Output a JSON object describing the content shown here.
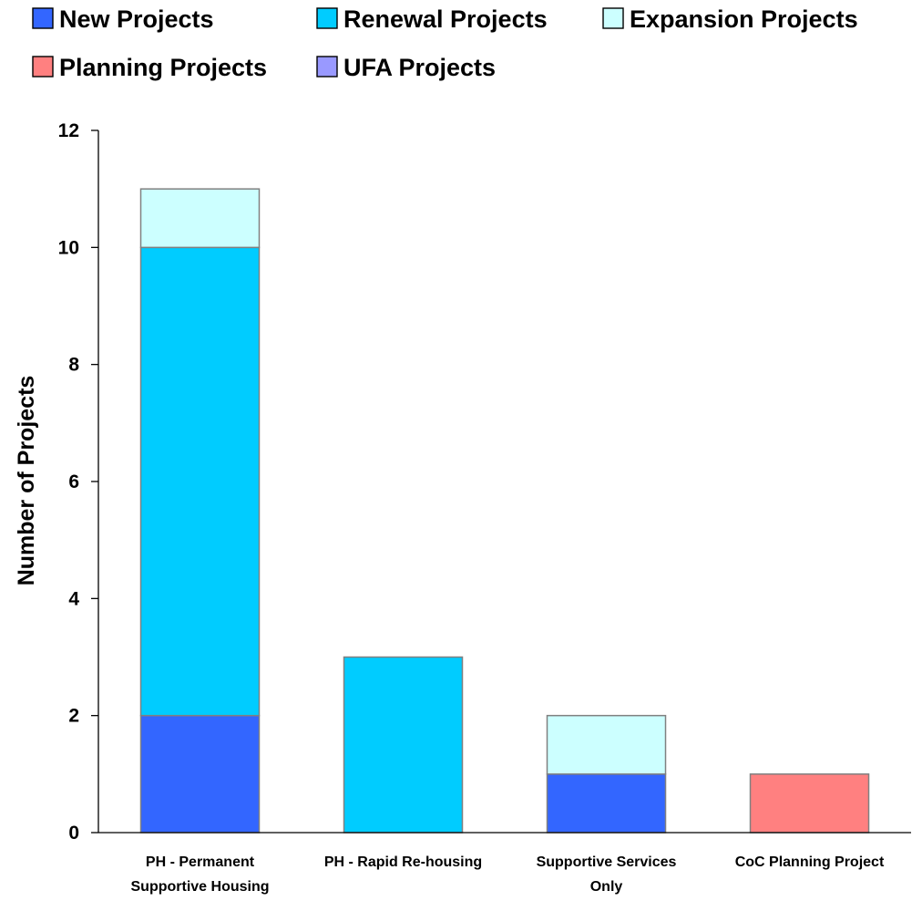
{
  "chart_data": {
    "type": "bar",
    "stacked": true,
    "categories": [
      [
        "PH - Permanent",
        "Supportive Housing"
      ],
      [
        "PH - Rapid Re-housing"
      ],
      [
        "Supportive Services",
        "Only"
      ],
      [
        "CoC Planning Project"
      ]
    ],
    "series": [
      {
        "name": "New Projects",
        "color": "#3366ff",
        "values": [
          2,
          0,
          1,
          0
        ]
      },
      {
        "name": "Renewal Projects",
        "color": "#00ccff",
        "values": [
          8,
          3,
          0,
          0
        ]
      },
      {
        "name": "Expansion Projects",
        "color": "#ccffff",
        "values": [
          1,
          0,
          1,
          0
        ]
      },
      {
        "name": "Planning Projects",
        "color": "#ff8080",
        "values": [
          0,
          0,
          0,
          1
        ]
      },
      {
        "name": "UFA Projects",
        "color": "#9999ff",
        "values": [
          0,
          0,
          0,
          0
        ]
      }
    ],
    "xlabel": "",
    "ylabel": "Number of Projects",
    "ylim": [
      0,
      12
    ],
    "yticks": [
      0,
      2,
      4,
      6,
      8,
      10,
      12
    ],
    "grid": false,
    "legend_position": "top"
  }
}
